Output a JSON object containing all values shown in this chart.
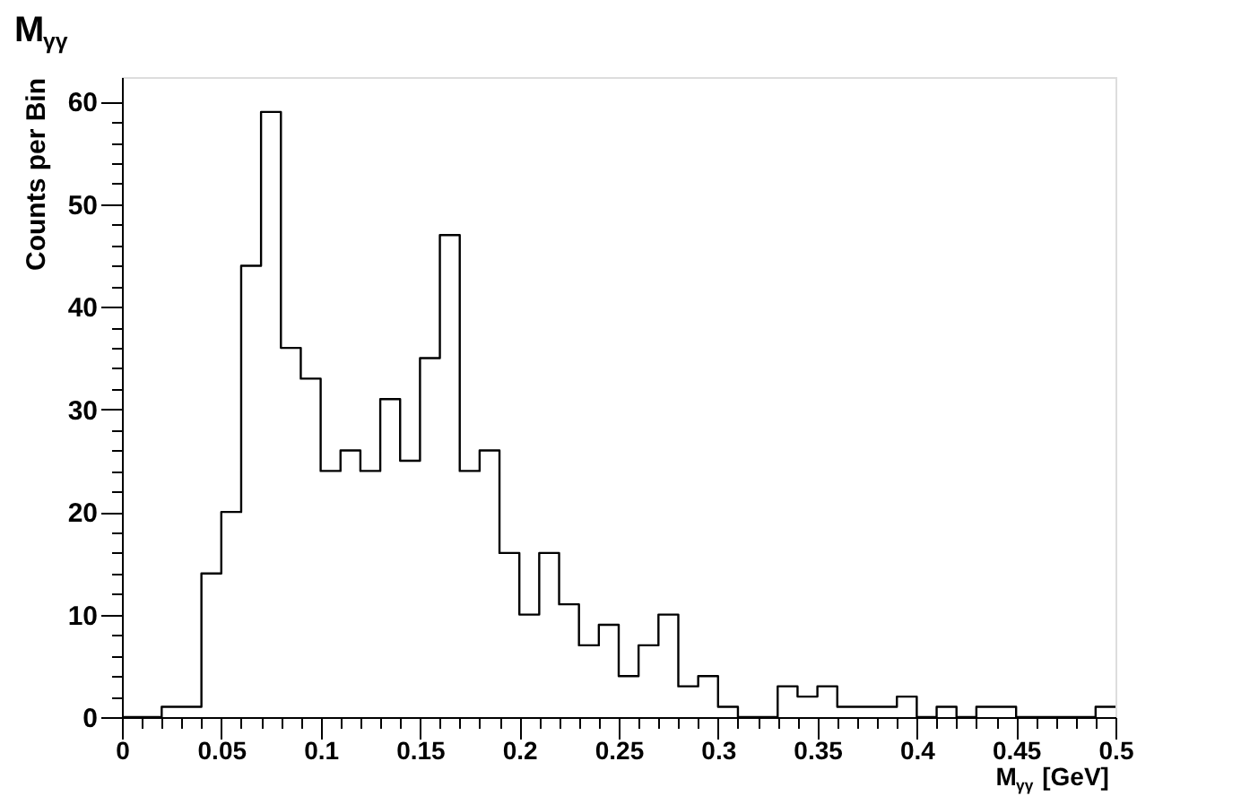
{
  "chart_data": {
    "type": "histogram",
    "title": "M$_{γγ}$",
    "xlabel": "M$_{γγ}$ [GeV]",
    "ylabel": "Counts per Bin",
    "color": "#000000",
    "bins": [
      0,
      0.01,
      0.02,
      0.03,
      0.04,
      0.05,
      0.06,
      0.07,
      0.08,
      0.09,
      0.1,
      0.11,
      0.12,
      0.13,
      0.14,
      0.15,
      0.16,
      0.17,
      0.18,
      0.19,
      0.2,
      0.21,
      0.22,
      0.23,
      0.24,
      0.25,
      0.26,
      0.27,
      0.28,
      0.29,
      0.3,
      0.31,
      0.32,
      0.33,
      0.34,
      0.35,
      0.36,
      0.37,
      0.38,
      0.39,
      0.4,
      0.41,
      0.42,
      0.43,
      0.44,
      0.45,
      0.46,
      0.47,
      0.48,
      0.49,
      0.5
    ],
    "values": [
      0,
      0,
      1,
      1,
      14,
      20,
      44,
      59,
      36,
      33,
      24,
      26,
      24,
      31,
      25,
      35,
      47,
      24,
      26,
      16,
      10,
      16,
      11,
      7,
      9,
      4,
      7,
      10,
      3,
      4,
      1,
      0,
      0,
      3,
      2,
      3,
      1,
      1,
      1,
      2,
      0,
      1,
      0,
      1,
      1,
      0,
      0,
      0,
      0,
      1
    ],
    "xlim": [
      0,
      0.5
    ],
    "ylim": [
      0,
      62.4
    ],
    "xticks": [
      0,
      {
        "value": 0.01,
        "label": null
      },
      {
        "value": 0.02,
        "label": null
      },
      {
        "value": 0.03,
        "label": null
      },
      {
        "value": 0.04,
        "label": null
      },
      0.05,
      {
        "value": 0.06,
        "label": null
      },
      {
        "value": 0.07,
        "label": null
      },
      {
        "value": 0.08,
        "label": null
      },
      {
        "value": 0.09,
        "label": null
      },
      0.1,
      {
        "value": 0.11,
        "label": null
      },
      {
        "value": 0.12,
        "label": null
      },
      {
        "value": 0.13,
        "label": null
      },
      {
        "value": 0.14,
        "label": null
      },
      0.15,
      {
        "value": 0.16,
        "label": null
      },
      {
        "value": 0.17,
        "label": null
      },
      {
        "value": 0.18,
        "label": null
      },
      {
        "value": 0.19,
        "label": null
      },
      0.2,
      {
        "value": 0.21,
        "label": null
      },
      {
        "value": 0.22,
        "label": null
      },
      {
        "value": 0.23,
        "label": null
      },
      {
        "value": 0.24,
        "label": null
      },
      0.25,
      {
        "value": 0.26,
        "label": null
      },
      {
        "value": 0.27,
        "label": null
      },
      {
        "value": 0.28,
        "label": null
      },
      {
        "value": 0.29,
        "label": null
      },
      0.3,
      {
        "value": 0.31,
        "label": null
      },
      {
        "value": 0.32,
        "label": null
      },
      {
        "value": 0.33,
        "label": null
      },
      {
        "value": 0.34,
        "label": null
      },
      0.35,
      {
        "value": 0.36,
        "label": null
      },
      {
        "value": 0.37,
        "label": null
      },
      {
        "value": 0.38,
        "label": null
      },
      {
        "value": 0.39,
        "label": null
      },
      0.4,
      {
        "value": 0.41,
        "label": null
      },
      {
        "value": 0.42,
        "label": null
      },
      {
        "value": 0.43,
        "label": null
      },
      {
        "value": 0.44,
        "label": null
      },
      0.45,
      {
        "value": 0.46,
        "label": null
      },
      {
        "value": 0.47,
        "label": null
      },
      {
        "value": 0.48,
        "label": null
      },
      {
        "value": 0.49,
        "label": null
      },
      0.5
    ],
    "yticks": [
      0,
      {
        "value": 2,
        "label": null
      },
      {
        "value": 4,
        "label": null
      },
      {
        "value": 6,
        "label": null
      },
      {
        "value": 8,
        "label": null
      },
      10,
      {
        "value": 12,
        "label": null
      },
      {
        "value": 14,
        "label": null
      },
      {
        "value": 16,
        "label": null
      },
      {
        "value": 18,
        "label": null
      },
      20,
      {
        "value": 22,
        "label": null
      },
      {
        "value": 24,
        "label": null
      },
      {
        "value": 26,
        "label": null
      },
      {
        "value": 28,
        "label": null
      },
      30,
      {
        "value": 32,
        "label": null
      },
      {
        "value": 34,
        "label": null
      },
      {
        "value": 36,
        "label": null
      },
      {
        "value": 38,
        "label": null
      },
      40,
      {
        "value": 42,
        "label": null
      },
      {
        "value": 44,
        "label": null
      },
      {
        "value": 46,
        "label": null
      },
      {
        "value": 48,
        "label": null
      },
      50,
      {
        "value": 52,
        "label": null
      },
      {
        "value": 54,
        "label": null
      },
      {
        "value": 56,
        "label": null
      },
      {
        "value": 58,
        "label": null
      },
      60
    ],
    "grid": false
  }
}
